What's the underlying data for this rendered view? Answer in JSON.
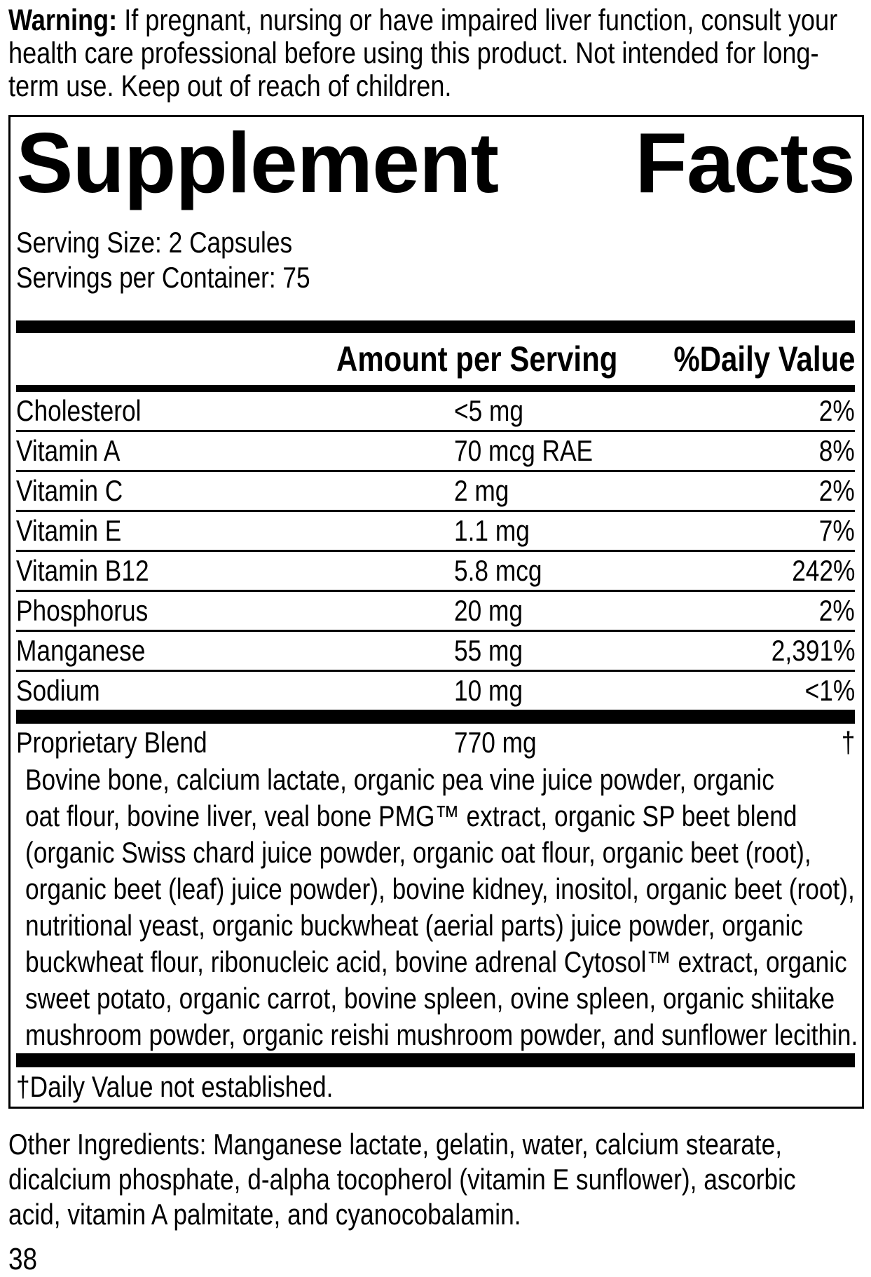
{
  "colors": {
    "ink": "#000000",
    "background": "#ffffff"
  },
  "warning": {
    "label": "Warning:",
    "lines": [
      "If pregnant, nursing or have impaired liver function, consult your",
      "health care professional before using this product. Not intended for long-",
      "term use. Keep out of reach of children."
    ]
  },
  "panel": {
    "title_left": "Supplement",
    "title_right": "Facts",
    "serving_size": "Serving Size: 2 Capsules",
    "servings_per_container": "Servings per Container: 75",
    "header": {
      "amount": "Amount per Serving",
      "daily_value": "%Daily Value"
    },
    "rows": [
      {
        "label": "Cholesterol",
        "amount": "<5 mg",
        "daily_value": "2%"
      },
      {
        "label": "Vitamin A",
        "amount": "70 mcg RAE",
        "daily_value": "8%"
      },
      {
        "label": "Vitamin C",
        "amount": "2 mg",
        "daily_value": "2%"
      },
      {
        "label": "Vitamin E",
        "amount": "1.1 mg",
        "daily_value": "7%"
      },
      {
        "label": "Vitamin B12",
        "amount": "5.8 mcg",
        "daily_value": "242%"
      },
      {
        "label": "Phosphorus",
        "amount": "20 mg",
        "daily_value": "2%"
      },
      {
        "label": "Manganese",
        "amount": "55 mg",
        "daily_value": "2,391%"
      },
      {
        "label": "Sodium",
        "amount": "10 mg",
        "daily_value": "<1%"
      }
    ],
    "proprietary": {
      "label": "Proprietary Blend",
      "amount": "770 mg",
      "daily_value": "†"
    },
    "blend_lines": [
      "Bovine bone, calcium lactate, organic pea vine juice powder, organic",
      "oat flour, bovine liver, veal bone PMG™ extract, organic SP beet blend",
      "(organic Swiss chard juice powder, organic oat flour, organic beet (root),",
      "organic beet (leaf) juice powder), bovine kidney, inositol, organic beet (root),",
      "nutritional yeast, organic buckwheat (aerial parts) juice powder, organic",
      "buckwheat flour, ribonucleic acid, bovine adrenal Cytosol™ extract, organic",
      "sweet potato, organic carrot, bovine spleen, ovine spleen, organic shiitake",
      "mushroom powder, organic reishi mushroom powder, and sunflower lecithin."
    ],
    "footnote": "†Daily Value not established."
  },
  "other_ingredients_lines": [
    "Other Ingredients: Manganese lactate, gelatin, water, calcium stearate,",
    "dicalcium phosphate, d-alpha tocopherol (vitamin E sunflower), ascorbic",
    "acid, vitamin A palmitate, and cyanocobalamin."
  ],
  "page_number": "38"
}
